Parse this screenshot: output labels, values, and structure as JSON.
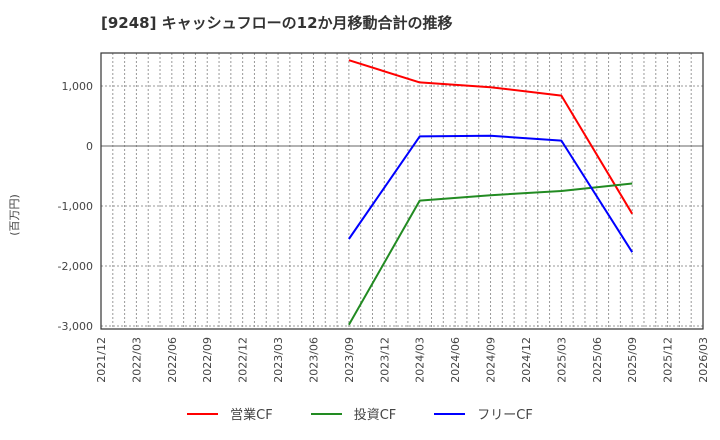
{
  "title": "[9248]  キャッシュフローの12か月移動合計の推移",
  "y_axis_label": "(百万円)",
  "legend": [
    {
      "label": "営業CF",
      "color": "#ff0000"
    },
    {
      "label": "投資CF",
      "color": "#228b22"
    },
    {
      "label": "フリーCF",
      "color": "#0000ff"
    }
  ],
  "chart_data": {
    "type": "line",
    "title": "[9248]  キャッシュフローの12か月移動合計の推移",
    "xlabel": "",
    "ylabel": "(百万円)",
    "ylim": [
      -3050,
      1570
    ],
    "yticks": [
      1000,
      0,
      -1000,
      -2000,
      -3000
    ],
    "ytick_labels": [
      "1,000",
      "0",
      "-1,000",
      "-2,000",
      "-3,000"
    ],
    "x_tick_labels": [
      "2021/12",
      "2022/03",
      "2022/06",
      "2022/09",
      "2022/12",
      "2023/03",
      "2023/06",
      "2023/09",
      "2023/12",
      "2024/03",
      "2024/06",
      "2024/09",
      "2024/12",
      "2025/03",
      "2025/06",
      "2025/09",
      "2025/12",
      "2026/03"
    ],
    "grid": true,
    "legend_position": "bottom",
    "x": [
      "2023/09",
      "2024/03",
      "2024/09",
      "2025/03",
      "2025/09"
    ],
    "series": [
      {
        "name": "営業CF",
        "color": "#ff0000",
        "values": [
          1430,
          1060,
          980,
          840,
          -1130
        ]
      },
      {
        "name": "投資CF",
        "color": "#228b22",
        "values": [
          -2980,
          -910,
          -820,
          -750,
          -625
        ]
      },
      {
        "name": "フリーCF",
        "color": "#0000ff",
        "values": [
          -1550,
          160,
          170,
          90,
          -1770
        ]
      }
    ]
  }
}
